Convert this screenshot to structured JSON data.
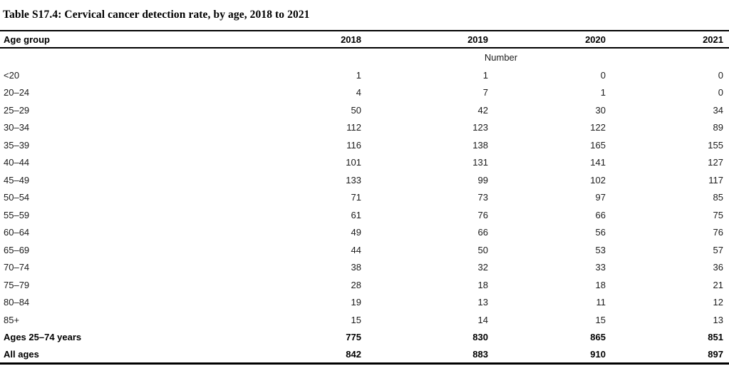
{
  "title": "Table S17.4: Cervical cancer detection rate, by age, 2018 to 2021",
  "table": {
    "header": {
      "age_group": "Age group",
      "years": [
        "2018",
        "2019",
        "2020",
        "2021"
      ]
    },
    "unit_row_label": "Number",
    "rows": [
      {
        "age_group": "<20",
        "values": [
          "1",
          "1",
          "0",
          "0"
        ],
        "bold": false
      },
      {
        "age_group": "20–24",
        "values": [
          "4",
          "7",
          "1",
          "0"
        ],
        "bold": false
      },
      {
        "age_group": "25–29",
        "values": [
          "50",
          "42",
          "30",
          "34"
        ],
        "bold": false
      },
      {
        "age_group": "30–34",
        "values": [
          "112",
          "123",
          "122",
          "89"
        ],
        "bold": false
      },
      {
        "age_group": "35–39",
        "values": [
          "116",
          "138",
          "165",
          "155"
        ],
        "bold": false
      },
      {
        "age_group": "40–44",
        "values": [
          "101",
          "131",
          "141",
          "127"
        ],
        "bold": false
      },
      {
        "age_group": "45–49",
        "values": [
          "133",
          "99",
          "102",
          "117"
        ],
        "bold": false
      },
      {
        "age_group": "50–54",
        "values": [
          "71",
          "73",
          "97",
          "85"
        ],
        "bold": false
      },
      {
        "age_group": "55–59",
        "values": [
          "61",
          "76",
          "66",
          "75"
        ],
        "bold": false
      },
      {
        "age_group": "60–64",
        "values": [
          "49",
          "66",
          "56",
          "76"
        ],
        "bold": false
      },
      {
        "age_group": "65–69",
        "values": [
          "44",
          "50",
          "53",
          "57"
        ],
        "bold": false
      },
      {
        "age_group": "70–74",
        "values": [
          "38",
          "32",
          "33",
          "36"
        ],
        "bold": false
      },
      {
        "age_group": "75–79",
        "values": [
          "28",
          "18",
          "18",
          "21"
        ],
        "bold": false
      },
      {
        "age_group": "80–84",
        "values": [
          "19",
          "13",
          "11",
          "12"
        ],
        "bold": false
      },
      {
        "age_group": "85+",
        "values": [
          "15",
          "14",
          "15",
          "13"
        ],
        "bold": false
      },
      {
        "age_group": "Ages 25–74 years",
        "values": [
          "775",
          "830",
          "865",
          "851"
        ],
        "bold": true
      },
      {
        "age_group": "All ages",
        "values": [
          "842",
          "883",
          "910",
          "897"
        ],
        "bold": true
      }
    ],
    "colors": {
      "background": "#ffffff",
      "text": "#1b1b1b",
      "rule": "#000000"
    }
  }
}
